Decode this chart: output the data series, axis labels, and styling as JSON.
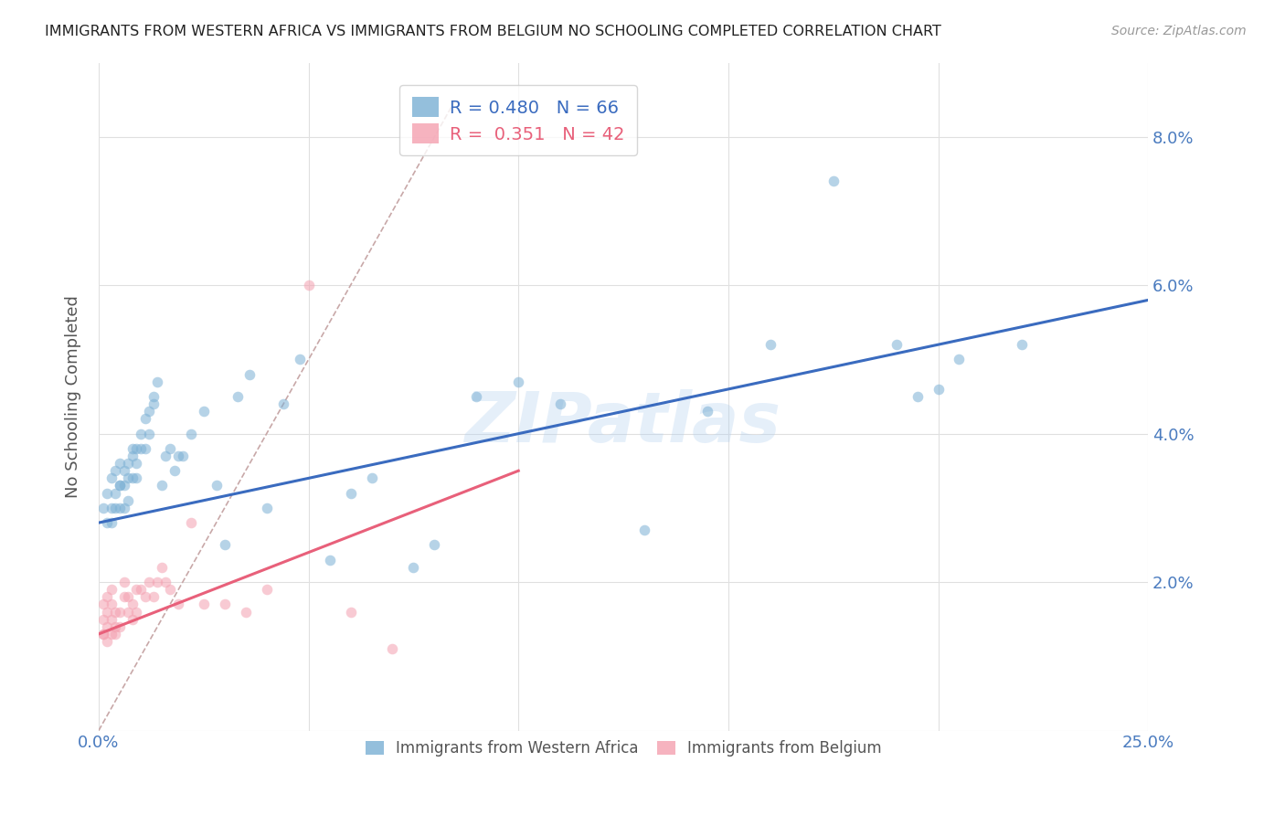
{
  "title": "IMMIGRANTS FROM WESTERN AFRICA VS IMMIGRANTS FROM BELGIUM NO SCHOOLING COMPLETED CORRELATION CHART",
  "source": "Source: ZipAtlas.com",
  "ylabel": "No Schooling Completed",
  "xlim": [
    0,
    0.25
  ],
  "ylim": [
    0,
    0.09
  ],
  "xticks": [
    0.0,
    0.05,
    0.1,
    0.15,
    0.2,
    0.25
  ],
  "xticklabels": [
    "0.0%",
    "",
    "",
    "",
    "",
    "25.0%"
  ],
  "yticks": [
    0.0,
    0.02,
    0.04,
    0.06,
    0.08
  ],
  "yticklabels": [
    "",
    "2.0%",
    "4.0%",
    "6.0%",
    "8.0%"
  ],
  "watermark": "ZIPatlas",
  "blue_color": "#7aafd4",
  "pink_color": "#f4a0b0",
  "blue_line_color": "#3a6bbf",
  "pink_line_color": "#e8607a",
  "diag_line_color": "#c8a8a8",
  "grid_color": "#e0e0e0",
  "title_color": "#222222",
  "tick_label_color": "#4a7bbf",
  "ylabel_color": "#555555",
  "blue_scatter_x": [
    0.001,
    0.002,
    0.002,
    0.003,
    0.003,
    0.003,
    0.004,
    0.004,
    0.004,
    0.005,
    0.005,
    0.005,
    0.005,
    0.006,
    0.006,
    0.006,
    0.007,
    0.007,
    0.007,
    0.008,
    0.008,
    0.008,
    0.009,
    0.009,
    0.009,
    0.01,
    0.01,
    0.011,
    0.011,
    0.012,
    0.012,
    0.013,
    0.013,
    0.014,
    0.015,
    0.016,
    0.017,
    0.018,
    0.019,
    0.02,
    0.022,
    0.025,
    0.028,
    0.03,
    0.033,
    0.036,
    0.04,
    0.044,
    0.048,
    0.055,
    0.06,
    0.065,
    0.075,
    0.08,
    0.09,
    0.1,
    0.11,
    0.13,
    0.145,
    0.16,
    0.175,
    0.19,
    0.2,
    0.205,
    0.195,
    0.22
  ],
  "blue_scatter_y": [
    0.03,
    0.032,
    0.028,
    0.034,
    0.03,
    0.028,
    0.035,
    0.032,
    0.03,
    0.033,
    0.03,
    0.033,
    0.036,
    0.033,
    0.03,
    0.035,
    0.034,
    0.031,
    0.036,
    0.037,
    0.034,
    0.038,
    0.036,
    0.038,
    0.034,
    0.038,
    0.04,
    0.042,
    0.038,
    0.04,
    0.043,
    0.045,
    0.044,
    0.047,
    0.033,
    0.037,
    0.038,
    0.035,
    0.037,
    0.037,
    0.04,
    0.043,
    0.033,
    0.025,
    0.045,
    0.048,
    0.03,
    0.044,
    0.05,
    0.023,
    0.032,
    0.034,
    0.022,
    0.025,
    0.045,
    0.047,
    0.044,
    0.027,
    0.043,
    0.052,
    0.074,
    0.052,
    0.046,
    0.05,
    0.045,
    0.052
  ],
  "pink_scatter_x": [
    0.001,
    0.001,
    0.001,
    0.001,
    0.002,
    0.002,
    0.002,
    0.002,
    0.003,
    0.003,
    0.003,
    0.003,
    0.004,
    0.004,
    0.004,
    0.005,
    0.005,
    0.006,
    0.006,
    0.007,
    0.007,
    0.008,
    0.008,
    0.009,
    0.009,
    0.01,
    0.011,
    0.012,
    0.013,
    0.014,
    0.015,
    0.016,
    0.017,
    0.019,
    0.022,
    0.025,
    0.03,
    0.035,
    0.04,
    0.05,
    0.06,
    0.07
  ],
  "pink_scatter_y": [
    0.013,
    0.013,
    0.015,
    0.017,
    0.012,
    0.014,
    0.016,
    0.018,
    0.013,
    0.015,
    0.017,
    0.019,
    0.013,
    0.014,
    0.016,
    0.014,
    0.016,
    0.018,
    0.02,
    0.016,
    0.018,
    0.015,
    0.017,
    0.016,
    0.019,
    0.019,
    0.018,
    0.02,
    0.018,
    0.02,
    0.022,
    0.02,
    0.019,
    0.017,
    0.028,
    0.017,
    0.017,
    0.016,
    0.019,
    0.06,
    0.016,
    0.011
  ],
  "blue_line_x": [
    0.0,
    0.25
  ],
  "blue_line_y_start": 0.028,
  "blue_line_y_end": 0.058,
  "pink_line_x": [
    0.0,
    0.1
  ],
  "pink_line_y_start": 0.013,
  "pink_line_y_end": 0.035,
  "diag_line_x": [
    0.0,
    0.085
  ],
  "diag_line_y_start": 0.0,
  "diag_line_y_end": 0.085,
  "legend1_label_r": "R = 0.480",
  "legend1_label_n": "N = 66",
  "legend2_label_r": "R =  0.351",
  "legend2_label_n": "N = 42",
  "bottom_legend1": "Immigrants from Western Africa",
  "bottom_legend2": "Immigrants from Belgium"
}
